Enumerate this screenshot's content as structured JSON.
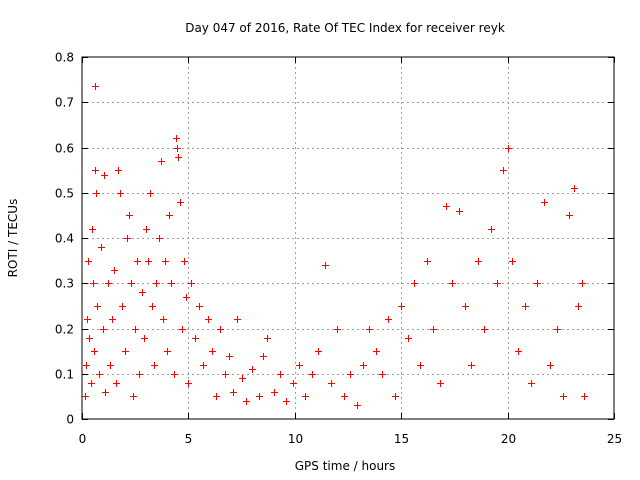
{
  "chart_data": {
    "type": "scatter",
    "title": "Day 047 of 2016, Rate Of TEC Index for receiver reyk",
    "xlabel": "GPS time / hours",
    "ylabel": "ROTI / TECUs",
    "xlim": [
      0,
      25
    ],
    "ylim": [
      0,
      0.8
    ],
    "xticks": [
      0,
      5,
      10,
      15,
      20,
      25
    ],
    "yticks": [
      0,
      0.1,
      0.2,
      0.3,
      0.4,
      0.5,
      0.6,
      0.7,
      0.8
    ],
    "xtick_labels": [
      "0",
      "5",
      "10",
      "15",
      "20",
      "25"
    ],
    "ytick_labels": [
      "0",
      "0.1",
      "0.2",
      "0.3",
      "0.4",
      "0.5",
      "0.6",
      "0.7",
      "0.8"
    ],
    "grid": true,
    "marker": "+",
    "color": "#ff0000",
    "series": [
      {
        "name": "ROTI",
        "points": [
          [
            0.15,
            0.05
          ],
          [
            0.2,
            0.12
          ],
          [
            0.25,
            0.22
          ],
          [
            0.3,
            0.35
          ],
          [
            0.35,
            0.18
          ],
          [
            0.4,
            0.08
          ],
          [
            0.45,
            0.42
          ],
          [
            0.5,
            0.3
          ],
          [
            0.55,
            0.15
          ],
          [
            0.6,
            0.735
          ],
          [
            0.6,
            0.55
          ],
          [
            0.65,
            0.5
          ],
          [
            0.7,
            0.25
          ],
          [
            0.8,
            0.1
          ],
          [
            0.9,
            0.38
          ],
          [
            1.0,
            0.2
          ],
          [
            1.05,
            0.54
          ],
          [
            1.1,
            0.06
          ],
          [
            1.2,
            0.3
          ],
          [
            1.3,
            0.12
          ],
          [
            1.4,
            0.22
          ],
          [
            1.5,
            0.33
          ],
          [
            1.6,
            0.08
          ],
          [
            1.7,
            0.55
          ],
          [
            1.8,
            0.5
          ],
          [
            1.9,
            0.25
          ],
          [
            2.0,
            0.15
          ],
          [
            2.1,
            0.4
          ],
          [
            2.2,
            0.45
          ],
          [
            2.3,
            0.3
          ],
          [
            2.4,
            0.05
          ],
          [
            2.5,
            0.2
          ],
          [
            2.6,
            0.35
          ],
          [
            2.7,
            0.1
          ],
          [
            2.8,
            0.28
          ],
          [
            2.9,
            0.18
          ],
          [
            3.0,
            0.42
          ],
          [
            3.1,
            0.35
          ],
          [
            3.2,
            0.5
          ],
          [
            3.3,
            0.25
          ],
          [
            3.4,
            0.12
          ],
          [
            3.5,
            0.3
          ],
          [
            3.6,
            0.4
          ],
          [
            3.7,
            0.57
          ],
          [
            3.8,
            0.22
          ],
          [
            3.9,
            0.35
          ],
          [
            4.0,
            0.15
          ],
          [
            4.1,
            0.45
          ],
          [
            4.2,
            0.3
          ],
          [
            4.3,
            0.1
          ],
          [
            4.4,
            0.62
          ],
          [
            4.45,
            0.6
          ],
          [
            4.5,
            0.58
          ],
          [
            4.6,
            0.48
          ],
          [
            4.7,
            0.2
          ],
          [
            4.8,
            0.35
          ],
          [
            4.9,
            0.27
          ],
          [
            5.0,
            0.08
          ],
          [
            5.1,
            0.3
          ],
          [
            5.3,
            0.18
          ],
          [
            5.5,
            0.25
          ],
          [
            5.7,
            0.12
          ],
          [
            5.9,
            0.22
          ],
          [
            6.1,
            0.15
          ],
          [
            6.3,
            0.05
          ],
          [
            6.5,
            0.2
          ],
          [
            6.7,
            0.1
          ],
          [
            6.9,
            0.14
          ],
          [
            7.1,
            0.06
          ],
          [
            7.3,
            0.22
          ],
          [
            7.5,
            0.09
          ],
          [
            7.7,
            0.04
          ],
          [
            8.0,
            0.11
          ],
          [
            8.3,
            0.05
          ],
          [
            8.5,
            0.14
          ],
          [
            8.7,
            0.18
          ],
          [
            9.0,
            0.06
          ],
          [
            9.3,
            0.1
          ],
          [
            9.6,
            0.04
          ],
          [
            9.9,
            0.08
          ],
          [
            10.2,
            0.12
          ],
          [
            10.5,
            0.05
          ],
          [
            10.8,
            0.1
          ],
          [
            11.1,
            0.15
          ],
          [
            11.4,
            0.34
          ],
          [
            11.7,
            0.08
          ],
          [
            12.0,
            0.2
          ],
          [
            12.3,
            0.05
          ],
          [
            12.6,
            0.1
          ],
          [
            12.9,
            0.03
          ],
          [
            13.2,
            0.12
          ],
          [
            13.5,
            0.2
          ],
          [
            13.8,
            0.15
          ],
          [
            14.1,
            0.1
          ],
          [
            14.4,
            0.22
          ],
          [
            14.7,
            0.05
          ],
          [
            15.0,
            0.25
          ],
          [
            15.3,
            0.18
          ],
          [
            15.6,
            0.3
          ],
          [
            15.9,
            0.12
          ],
          [
            16.2,
            0.35
          ],
          [
            16.5,
            0.2
          ],
          [
            16.8,
            0.08
          ],
          [
            17.1,
            0.47
          ],
          [
            17.4,
            0.3
          ],
          [
            17.7,
            0.46
          ],
          [
            18.0,
            0.25
          ],
          [
            18.3,
            0.12
          ],
          [
            18.6,
            0.35
          ],
          [
            18.9,
            0.2
          ],
          [
            19.2,
            0.42
          ],
          [
            19.5,
            0.3
          ],
          [
            19.8,
            0.55
          ],
          [
            20.0,
            0.6
          ],
          [
            20.2,
            0.35
          ],
          [
            20.5,
            0.15
          ],
          [
            20.8,
            0.25
          ],
          [
            21.1,
            0.08
          ],
          [
            21.4,
            0.3
          ],
          [
            21.7,
            0.48
          ],
          [
            22.0,
            0.12
          ],
          [
            22.3,
            0.2
          ],
          [
            22.6,
            0.05
          ],
          [
            22.9,
            0.45
          ],
          [
            23.1,
            0.51
          ],
          [
            23.3,
            0.25
          ],
          [
            23.5,
            0.3
          ],
          [
            23.6,
            0.05
          ]
        ]
      }
    ]
  }
}
